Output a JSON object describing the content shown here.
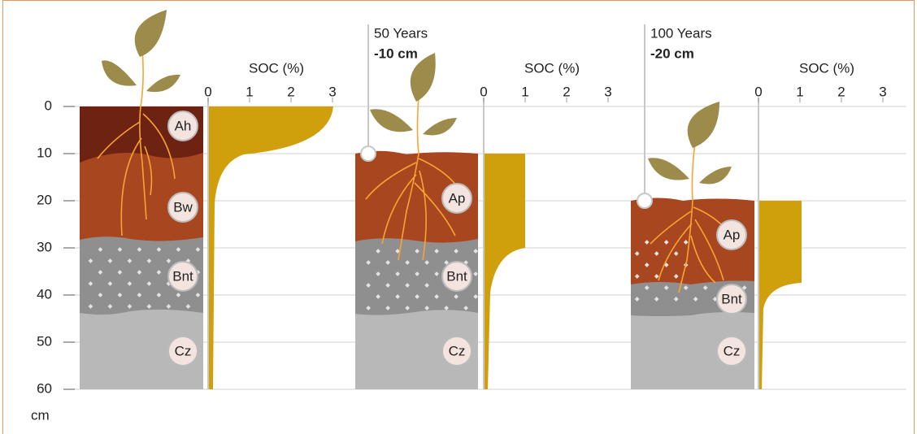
{
  "depth_axis": {
    "ticks": [
      0,
      10,
      20,
      30,
      40,
      50,
      60
    ],
    "unit": "cm"
  },
  "profiles": [
    {
      "soc_label": "SOC (%)",
      "soc_ticks": [
        0,
        1,
        2,
        3
      ],
      "horizons": [
        "Ah",
        "Bw",
        "Bnt",
        "Cz"
      ]
    },
    {
      "annotation": {
        "time": "50 Years",
        "change": "-10 cm"
      },
      "soc_label": "SOC (%)",
      "soc_ticks": [
        0,
        1,
        2,
        3
      ],
      "horizons": [
        "Ap",
        "Bnt",
        "Cz"
      ]
    },
    {
      "annotation": {
        "time": "100 Years",
        "change": "-20 cm"
      },
      "soc_label": "SOC (%)",
      "soc_ticks": [
        0,
        1,
        2,
        3
      ],
      "horizons": [
        "Ap",
        "Bnt",
        "Cz"
      ]
    }
  ]
}
